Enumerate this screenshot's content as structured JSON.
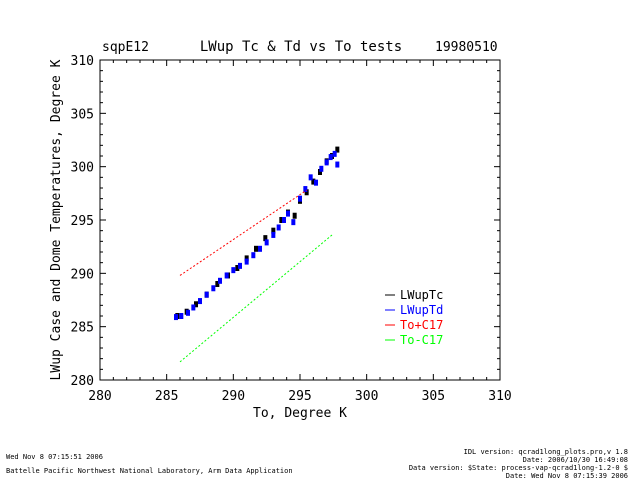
{
  "header": {
    "site": "sqpE12",
    "title": "LWup Tc & Td vs To tests",
    "date": "19980510"
  },
  "chart_data": {
    "type": "scatter",
    "title": "LWup Tc & Td vs To tests",
    "xlabel": "To, Degree K",
    "ylabel": "LWup Case and Dome Temperatures, Degree K",
    "xlim": [
      280,
      310
    ],
    "ylim": [
      280,
      310
    ],
    "xticks": [
      "280",
      "285",
      "290",
      "295",
      "300",
      "305",
      "310"
    ],
    "yticks": [
      "280",
      "285",
      "290",
      "295",
      "300",
      "305",
      "310"
    ],
    "grid": false,
    "legend_position": "right",
    "series": [
      {
        "name": "LWupTc",
        "color": "#000000",
        "kind": "points",
        "x": [
          285.8,
          286.5,
          287.2,
          288.0,
          288.8,
          289.6,
          290.3,
          291.0,
          291.7,
          292.4,
          293.0,
          293.6,
          294.1,
          294.6,
          295.0,
          295.5,
          296.0,
          296.5,
          297.0,
          297.4,
          297.8
        ],
        "y": [
          286.0,
          286.4,
          287.1,
          288.0,
          289.0,
          289.8,
          290.5,
          291.4,
          292.3,
          293.3,
          294.0,
          295.0,
          295.7,
          295.4,
          296.8,
          297.6,
          298.6,
          299.5,
          300.5,
          301.0,
          301.6
        ]
      },
      {
        "name": "LWupTd",
        "color": "#0000ff",
        "kind": "points",
        "x": [
          285.7,
          286.1,
          286.6,
          287.0,
          287.5,
          288.0,
          288.5,
          289.0,
          289.5,
          290.0,
          290.5,
          291.0,
          291.5,
          292.0,
          292.5,
          293.0,
          293.4,
          293.8,
          294.1,
          294.5,
          295.0,
          295.4,
          295.8,
          296.2,
          296.6,
          297.0,
          297.3,
          297.6,
          297.8
        ],
        "y": [
          285.9,
          286.0,
          286.3,
          286.8,
          287.4,
          288.0,
          288.6,
          289.3,
          289.8,
          290.3,
          290.7,
          291.1,
          291.7,
          292.3,
          292.9,
          293.6,
          294.3,
          295.0,
          295.6,
          294.8,
          297.0,
          297.9,
          299.0,
          298.5,
          299.8,
          300.4,
          300.9,
          301.2,
          300.2
        ]
      },
      {
        "name": "To+C17",
        "color": "#ff0000",
        "kind": "line",
        "x": [
          286.0,
          295.5
        ],
        "y": [
          289.8,
          297.8
        ]
      },
      {
        "name": "To-C17",
        "color": "#00ff00",
        "kind": "line",
        "x": [
          286.0,
          297.5
        ],
        "y": [
          281.7,
          293.7
        ]
      }
    ]
  },
  "footer": {
    "left_timestamp": "Wed Nov  8 07:15:51 2006",
    "left_org": "Battelle Pacific Northwest National Laboratory, Arm Data Application",
    "right_lines": [
      "IDL version: qcrad1long_plots.pro,v 1.8",
      "Date: 2006/10/30 16:49:08",
      "Data version: $State: process-vap-qcrad1long-1.2-0 $",
      "Date: Wed Nov  8 07:15:39 2006"
    ]
  }
}
